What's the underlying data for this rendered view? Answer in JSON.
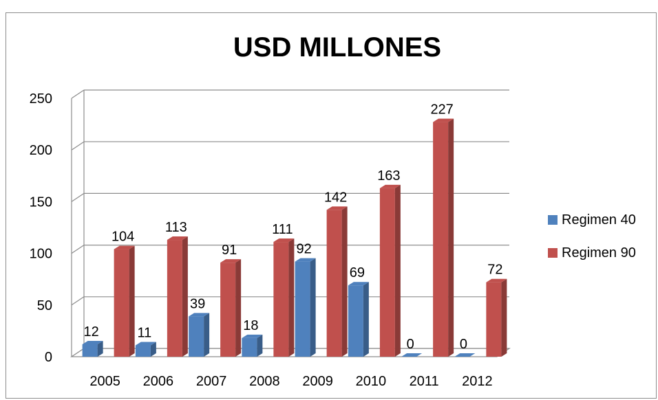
{
  "chart_data": {
    "type": "bar",
    "title": "USD MILLONES",
    "categories": [
      "2005",
      "2006",
      "2007",
      "2008",
      "2009",
      "2010",
      "2011",
      "2012"
    ],
    "series": [
      {
        "name": "Regimen 40",
        "color": "#4F81BD",
        "values": [
          12,
          11,
          39,
          18,
          92,
          69,
          0,
          0
        ],
        "data_labels": [
          "12",
          "11",
          "39",
          "18",
          "92",
          "69",
          "0",
          "0"
        ]
      },
      {
        "name": "Regimen 90",
        "color": "#C0504D",
        "values": [
          104,
          113,
          91,
          111,
          142,
          163,
          227,
          72
        ],
        "data_labels": [
          "104",
          "113",
          "91",
          "111",
          "142",
          "163",
          "227",
          "72"
        ]
      }
    ],
    "y_ticks": [
      "0",
      "50",
      "100",
      "150",
      "200",
      "250"
    ],
    "ylim": [
      0,
      250
    ],
    "grid": true,
    "style": "3d-column",
    "legend_position": "right"
  }
}
